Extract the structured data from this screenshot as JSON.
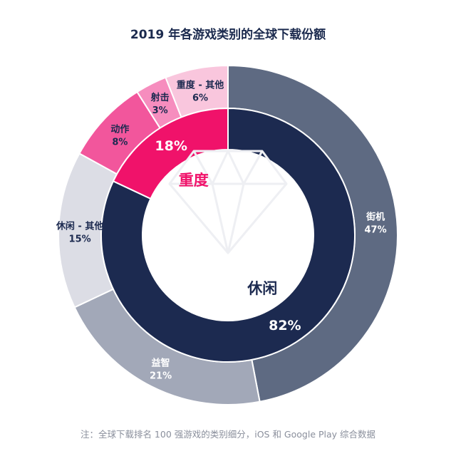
{
  "chart_data": {
    "type": "pie",
    "title": "2019 年各游戏类别的全球下载份额",
    "inner_ring": [
      {
        "name": "休闲",
        "value": 82,
        "label": "82%",
        "color": "#1c2a50"
      },
      {
        "name": "重度",
        "value": 18,
        "label": "18%",
        "color": "#f0126a"
      }
    ],
    "outer_ring": [
      {
        "name": "街机",
        "value": 47,
        "label": "47%",
        "group": "休闲",
        "color": "#5e6a82"
      },
      {
        "name": "益智",
        "value": 21,
        "label": "21%",
        "group": "休闲",
        "color": "#a2a8b8"
      },
      {
        "name": "休闲 - 其他",
        "value": 15,
        "label": "15%",
        "group": "休闲",
        "color": "#dcdde5"
      },
      {
        "name": "动作",
        "value": 8,
        "label": "8%",
        "group": "重度",
        "color": "#f2569c"
      },
      {
        "name": "射击",
        "value": 3,
        "label": "3%",
        "group": "重度",
        "color": "#f68dbe"
      },
      {
        "name": "重度 - 其他",
        "value": 6,
        "label": "6%",
        "group": "重度",
        "color": "#f9c6dd"
      }
    ],
    "note": "注：全球下载排名 100 强游戏的类别细分，iOS 和 Google Play 综合数据"
  },
  "icons": [
    "diamond-icon"
  ]
}
